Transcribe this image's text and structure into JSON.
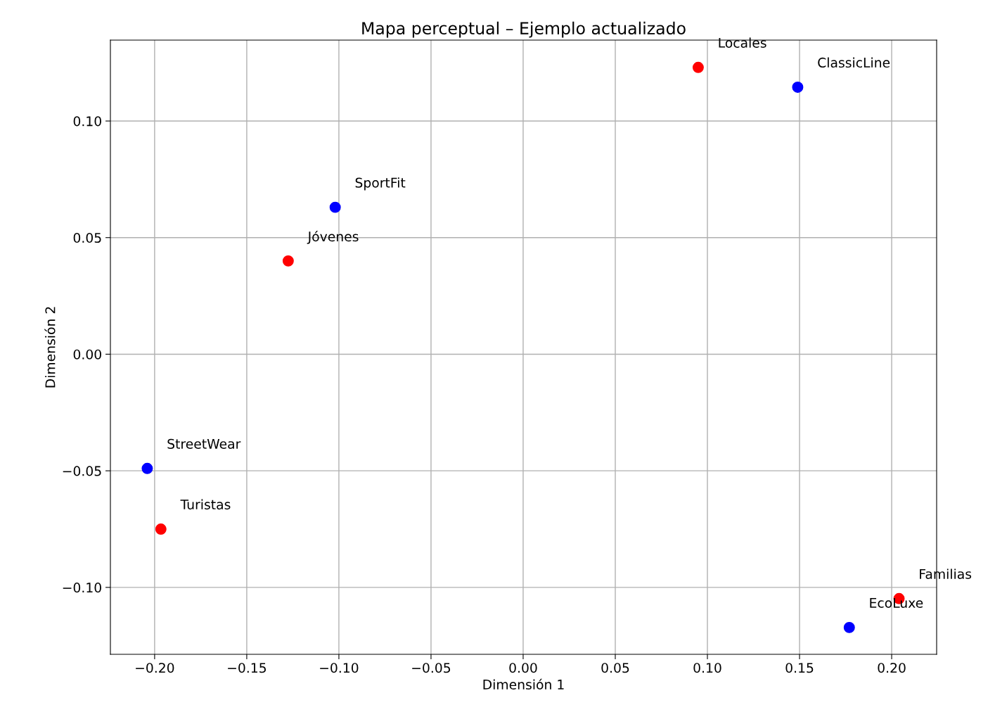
{
  "chart_data": {
    "type": "scatter",
    "title": "Mapa perceptual – Ejemplo actualizado",
    "xlabel": "Dimensión 1",
    "ylabel": "Dimensión 2",
    "series": [
      {
        "color": "#0000ff",
        "x": [
          -0.102,
          0.149,
          -0.204,
          0.177
        ],
        "values": [
          0.063,
          0.1145,
          -0.049,
          -0.1172
        ]
      },
      {
        "color": "#ff0000",
        "x": [
          0.095,
          -0.1275,
          -0.1966,
          0.204
        ],
        "values": [
          0.123,
          0.04,
          -0.075,
          -0.1048
        ]
      }
    ],
    "annotations": [
      {
        "text": "SportFit",
        "x": -0.102,
        "y": 0.063
      },
      {
        "text": "ClassicLine",
        "x": 0.149,
        "y": 0.1145
      },
      {
        "text": "StreetWear",
        "x": -0.204,
        "y": -0.049
      },
      {
        "text": "EcoLuxe",
        "x": 0.177,
        "y": -0.1172
      },
      {
        "text": "Locales",
        "x": 0.095,
        "y": 0.123
      },
      {
        "text": "Jóvenes",
        "x": -0.1275,
        "y": 0.04
      },
      {
        "text": "Turistas",
        "x": -0.1966,
        "y": -0.075
      },
      {
        "text": "Familias",
        "x": 0.204,
        "y": -0.1048
      }
    ],
    "xlim": [
      -0.224,
      0.2244
    ],
    "ylim": [
      -0.1287,
      0.1347
    ],
    "xticks": [
      {
        "value": -0.2,
        "label": "−0.20"
      },
      {
        "value": -0.15,
        "label": "−0.15"
      },
      {
        "value": -0.1,
        "label": "−0.10"
      },
      {
        "value": -0.05,
        "label": "−0.05"
      },
      {
        "value": 0,
        "label": "0.00"
      },
      {
        "value": 0.05,
        "label": "0.05"
      },
      {
        "value": 0.1,
        "label": "0.10"
      },
      {
        "value": 0.15,
        "label": "0.15"
      },
      {
        "value": 0.2,
        "label": "0.20"
      }
    ],
    "yticks": [
      {
        "value": -0.1,
        "label": "−0.10"
      },
      {
        "value": -0.05,
        "label": "−0.05"
      },
      {
        "value": 0,
        "label": "0.00"
      },
      {
        "value": 0.05,
        "label": "0.05"
      },
      {
        "value": 0.1,
        "label": "0.10"
      }
    ],
    "grid": true,
    "marker": "circle"
  }
}
